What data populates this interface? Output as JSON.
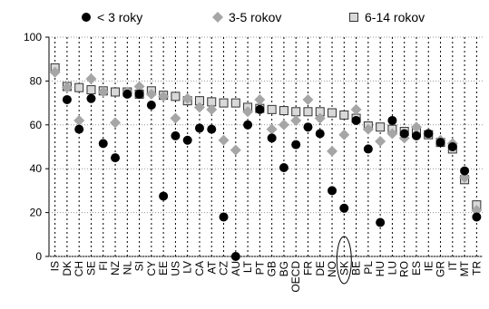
{
  "chart_data": {
    "type": "dot",
    "categories": [
      "IS",
      "DK",
      "CH",
      "SE",
      "FI",
      "NZ",
      "NL",
      "SI",
      "CY",
      "EE",
      "US",
      "LV",
      "CA",
      "AT",
      "CZ",
      "AU",
      "LT",
      "PT",
      "GB",
      "BG",
      "OECD",
      "FR",
      "DE",
      "NO",
      "SK",
      "BE",
      "PL",
      "HU",
      "LU",
      "RO",
      "ES",
      "IE",
      "GR",
      "IT",
      "MT",
      "TR"
    ],
    "series": [
      {
        "name": "< 3 roky",
        "color": "#000000",
        "marker": "circle",
        "values": [
          null,
          71.5,
          58,
          72,
          51.5,
          45,
          74,
          74,
          69,
          27.5,
          55,
          53,
          58.5,
          58,
          18,
          0,
          60,
          67,
          54,
          40.5,
          51,
          59,
          56,
          30,
          22,
          62,
          49,
          15.5,
          62,
          56,
          55,
          56,
          52,
          50,
          39,
          18
        ]
      },
      {
        "name": "3-5 rokov",
        "color": "#a6a6a6",
        "marker": "diamond",
        "values": [
          84,
          77,
          62,
          81,
          75,
          61,
          75,
          77.5,
          74,
          73,
          63,
          72,
          68,
          67,
          53,
          48.5,
          66,
          71.5,
          58,
          60,
          62,
          71.5,
          63,
          48,
          55.5,
          67,
          58,
          52.5,
          56,
          54,
          59,
          56,
          53,
          51.5,
          36,
          21
        ]
      },
      {
        "name": "6-14 rokov",
        "color": "#d9d9d9",
        "marker": "square",
        "values": [
          86,
          77.5,
          77,
          76,
          75.5,
          75,
          75,
          74,
          75.5,
          73.5,
          73,
          71,
          71,
          70.5,
          70,
          70,
          68,
          67.5,
          67,
          66.5,
          66,
          66,
          66,
          65.5,
          64.5,
          63,
          59.5,
          59,
          58,
          57,
          56.5,
          55.5,
          52,
          49,
          35,
          23.5
        ]
      }
    ],
    "ylim": [
      0,
      100
    ],
    "yticks": [
      0,
      20,
      40,
      60,
      80,
      100
    ],
    "grid": true
  }
}
